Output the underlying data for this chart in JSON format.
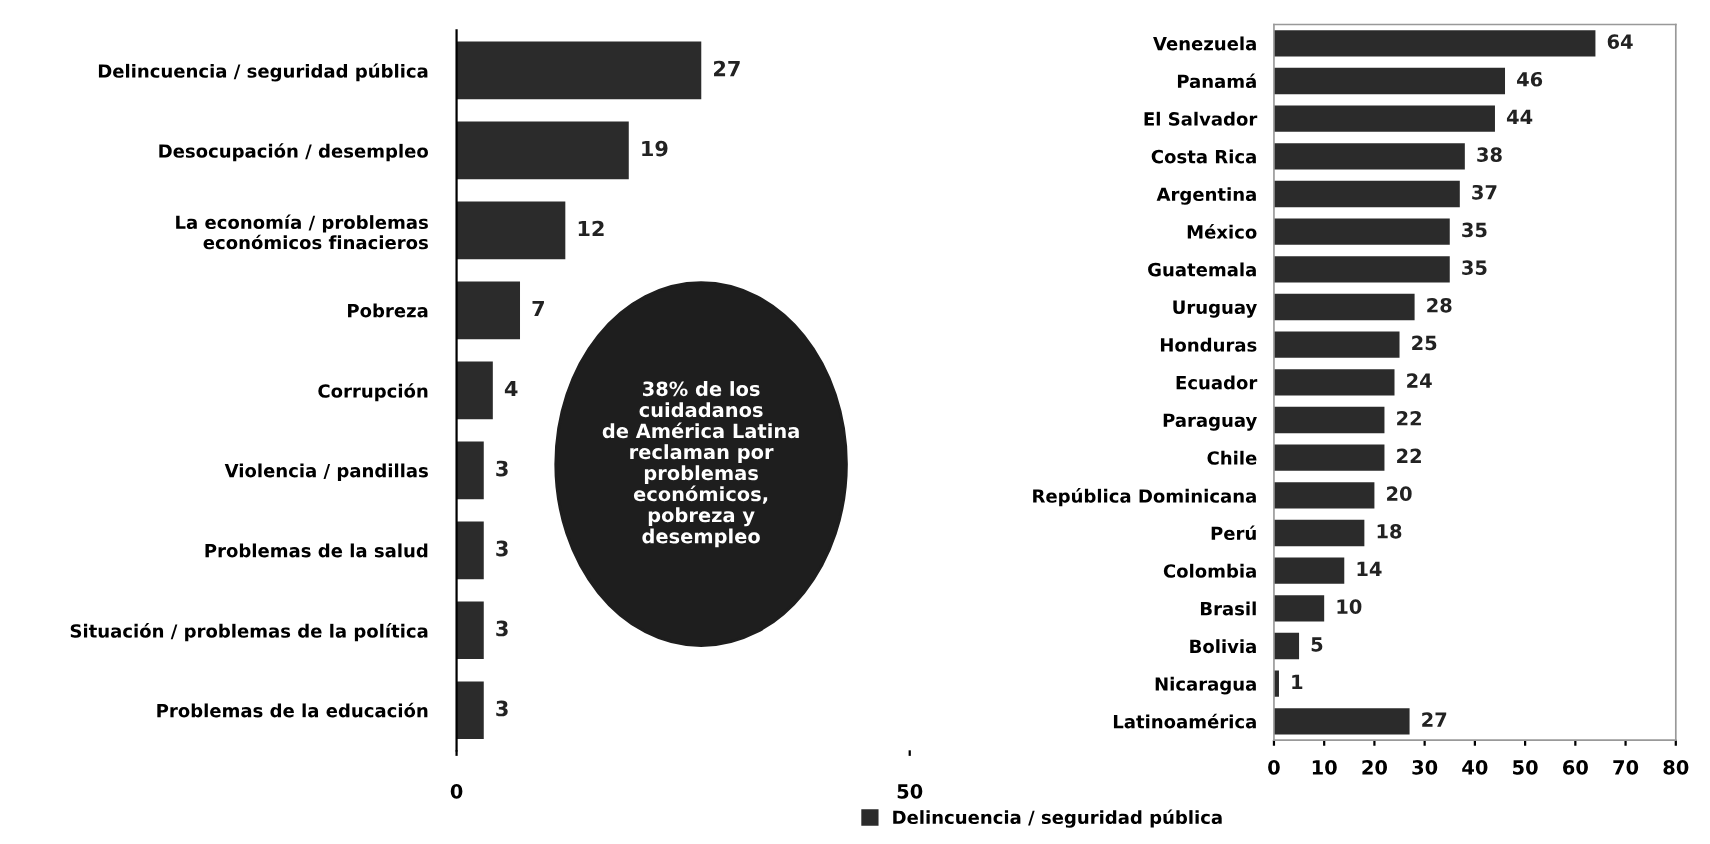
{
  "chart_data": [
    {
      "type": "bar",
      "orientation": "horizontal",
      "categories": [
        "Delincuencia / seguridad pública",
        "Desocupación / desempleo",
        "La economía / problemas\neconómicos finacieros",
        "Pobreza",
        "Corrupción",
        "Violencia / pandillas",
        "Problemas de la salud",
        "Situación / problemas de la política",
        "Problemas de la educación"
      ],
      "series": [
        {
          "color": "#2b2b2b",
          "values": [
            27,
            19,
            12,
            7,
            4,
            3,
            3,
            3,
            3
          ]
        }
      ],
      "xlim": [
        0,
        50
      ],
      "xticks": [
        0,
        50
      ],
      "data_labels": true,
      "grid": false,
      "legend": false,
      "annotations": [
        "38% de los\ncuidadanos\nde América Latina\nreclaman por\nproblemas\neconómicos,\npobreza y\ndesempleo"
      ]
    },
    {
      "type": "bar",
      "orientation": "horizontal",
      "categories": [
        "Venezuela",
        "Panamá",
        "El Salvador",
        "Costa Rica",
        "Argentina",
        "México",
        "Guatemala",
        "Uruguay",
        "Honduras",
        "Ecuador",
        "Paraguay",
        "Chile",
        "República Dominicana",
        "Perú",
        "Colombia",
        "Brasil",
        "Bolivia",
        "Nicaragua",
        "Latinoamérica"
      ],
      "series": [
        {
          "name": "Delincuencia / seguridad pública",
          "color": "#2b2b2b",
          "values": [
            64,
            46,
            44,
            38,
            37,
            35,
            35,
            28,
            25,
            24,
            22,
            22,
            20,
            18,
            14,
            10,
            5,
            1,
            27
          ]
        }
      ],
      "xlim": [
        0,
        80
      ],
      "xticks": [
        0,
        10,
        20,
        30,
        40,
        50,
        60,
        70,
        80
      ],
      "data_labels": true,
      "grid": false,
      "legend": "bottom"
    }
  ]
}
